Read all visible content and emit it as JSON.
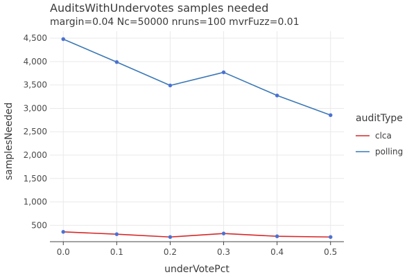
{
  "chart_data": {
    "type": "line",
    "title": "AuditsWithUndervotes samples needed",
    "subtitle": "margin=0.04 Nc=50000 nruns=100 mvrFuzz=0.01",
    "xlabel": "underVotePct",
    "ylabel": "samplesNeeded",
    "x": [
      0.0,
      0.1,
      0.2,
      0.3,
      0.4,
      0.5
    ],
    "xticks": [
      "0.0",
      "0.1",
      "0.2",
      "0.3",
      "0.4",
      "0.5"
    ],
    "xlim": [
      -0.025,
      0.525
    ],
    "ylim": [
      150,
      4650
    ],
    "yticks": [
      {
        "value": 500,
        "label": "500"
      },
      {
        "value": 1000,
        "label": "1,000"
      },
      {
        "value": 1500,
        "label": "1,500"
      },
      {
        "value": 2000,
        "label": "2,000"
      },
      {
        "value": 2500,
        "label": "2,500"
      },
      {
        "value": 3000,
        "label": "3,000"
      },
      {
        "value": 3500,
        "label": "3,500"
      },
      {
        "value": 4000,
        "label": "4,000"
      },
      {
        "value": 4500,
        "label": "4,500"
      }
    ],
    "grid": true,
    "legend": {
      "title": "auditType",
      "position": "right"
    },
    "series": [
      {
        "name": "clca",
        "color": "#d62728",
        "values": [
          360,
          310,
          250,
          325,
          265,
          250
        ]
      },
      {
        "name": "polling",
        "color": "#3a78b5",
        "values": [
          4480,
          3990,
          3490,
          3770,
          3275,
          2855
        ]
      }
    ],
    "marker_color": "#4a6fd1"
  }
}
